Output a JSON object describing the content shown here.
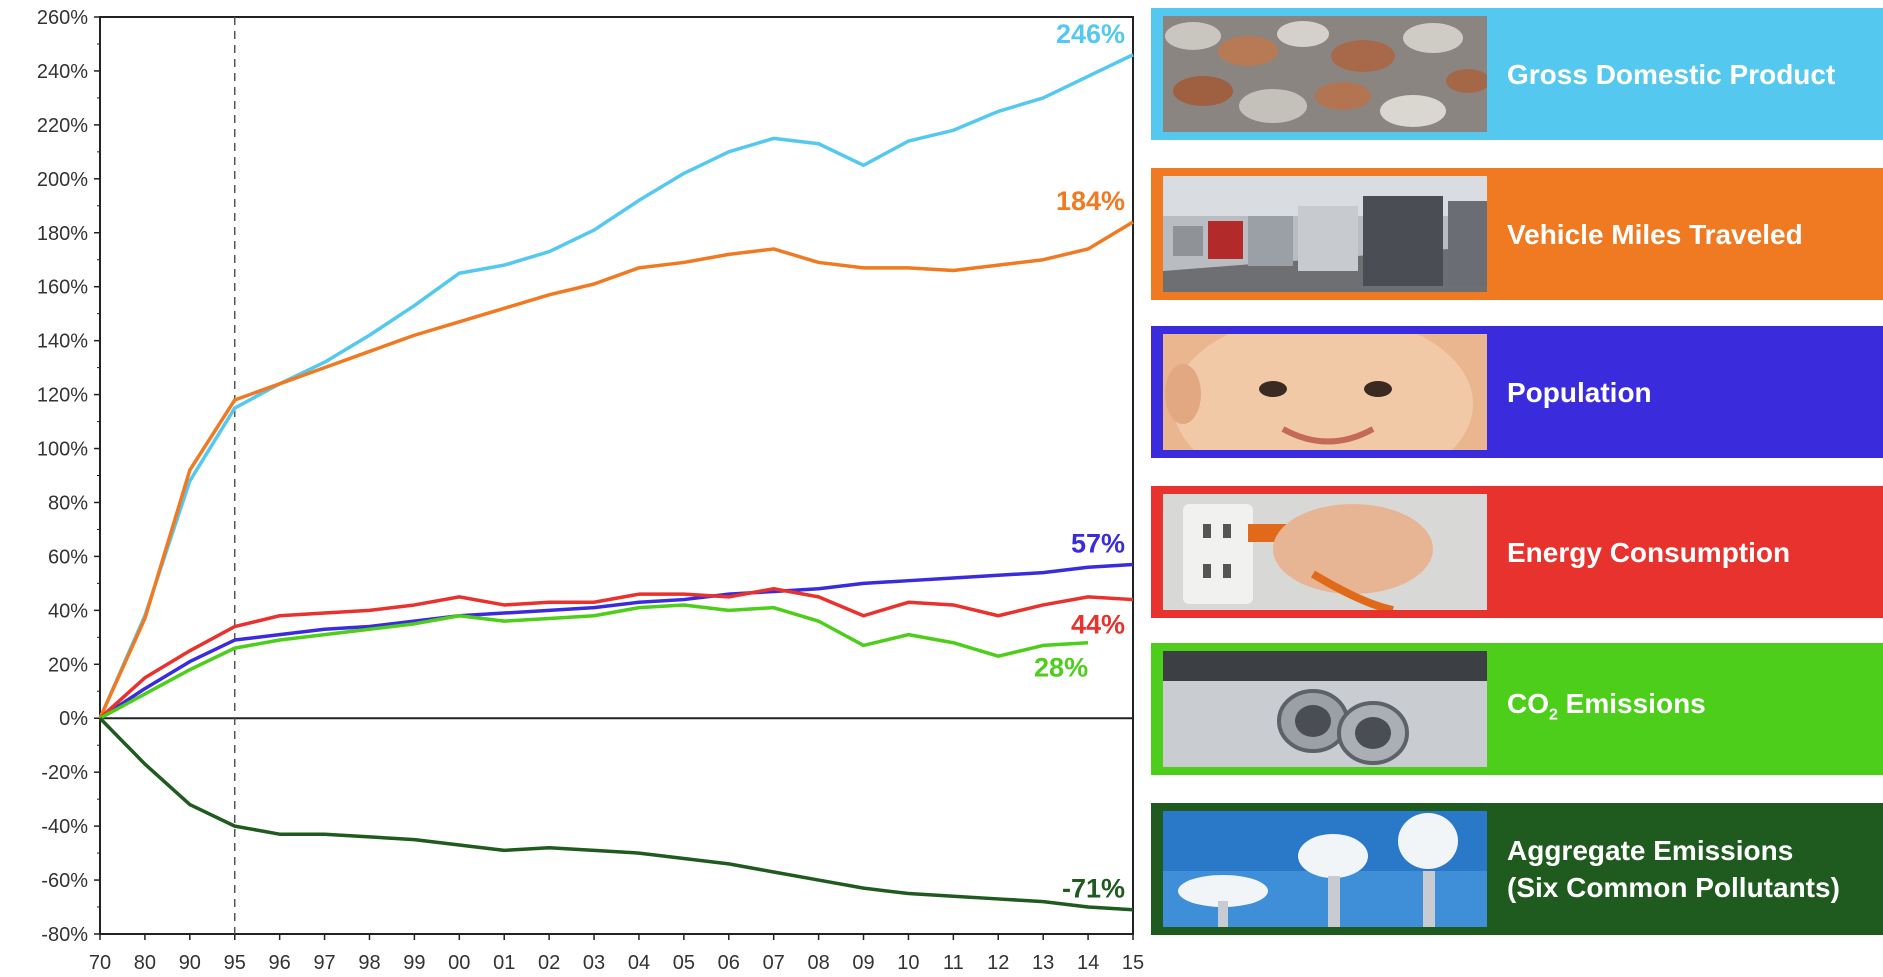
{
  "chart_data": {
    "type": "line",
    "x": [
      "70",
      "80",
      "90",
      "95",
      "96",
      "97",
      "98",
      "99",
      "00",
      "01",
      "02",
      "03",
      "04",
      "05",
      "06",
      "07",
      "08",
      "09",
      "10",
      "11",
      "12",
      "13",
      "14",
      "15"
    ],
    "ylim": [
      -80,
      260
    ],
    "yticks": [
      "260%",
      "240%",
      "220%",
      "200%",
      "180%",
      "160%",
      "140%",
      "120%",
      "100%",
      "80%",
      "60%",
      "40%",
      "20%",
      "0%",
      "-20%",
      "-40%",
      "-60%",
      "-80%"
    ],
    "grid": false,
    "reference_line_x": "95",
    "series": [
      {
        "name": "Gross Domestic Product",
        "color": "#55c8f0",
        "end_label": "246%",
        "values": [
          0,
          38,
          88,
          115,
          124,
          132,
          142,
          153,
          165,
          168,
          173,
          181,
          192,
          202,
          210,
          215,
          213,
          205,
          214,
          218,
          225,
          230,
          238,
          246
        ]
      },
      {
        "name": "Vehicle Miles Traveled",
        "color": "#f07a22",
        "end_label": "184%",
        "values": [
          0,
          37,
          92,
          118,
          124,
          130,
          136,
          142,
          147,
          152,
          157,
          161,
          167,
          169,
          172,
          174,
          169,
          167,
          167,
          166,
          168,
          170,
          174,
          184
        ]
      },
      {
        "name": "Population",
        "color": "#3a2cdc",
        "end_label": "57%",
        "values": [
          0,
          11,
          21,
          29,
          31,
          33,
          34,
          36,
          38,
          39,
          40,
          41,
          43,
          44,
          46,
          47,
          48,
          50,
          51,
          52,
          53,
          54,
          56,
          57
        ]
      },
      {
        "name": "Energy Consumption",
        "color": "#e8322e",
        "end_label": "44%",
        "values": [
          0,
          15,
          25,
          34,
          38,
          39,
          40,
          42,
          45,
          42,
          43,
          43,
          46,
          46,
          45,
          48,
          45,
          38,
          43,
          42,
          38,
          42,
          45,
          44
        ]
      },
      {
        "name": "CO2 Emissions",
        "color": "#4cce1a",
        "end_label": "28%",
        "values": [
          0,
          9,
          18,
          26,
          29,
          31,
          33,
          35,
          38,
          36,
          37,
          38,
          41,
          42,
          40,
          41,
          36,
          27,
          31,
          28,
          23,
          27,
          28,
          null
        ]
      },
      {
        "name": "Aggregate Emissions (Six Common Pollutants)",
        "color": "#1f5a1f",
        "end_label": "-71%",
        "values": [
          0,
          -17,
          -32,
          -40,
          -43,
          -43,
          -44,
          -45,
          -47,
          -49,
          -48,
          -49,
          -50,
          -52,
          -54,
          -57,
          -60,
          -63,
          -65,
          -66,
          -67,
          -68,
          -70,
          -71
        ]
      }
    ]
  },
  "legend": [
    {
      "label": "Gross Domestic Product",
      "color": "#55c8f0",
      "photo": "coins-photo"
    },
    {
      "label": "Vehicle Miles Traveled",
      "color": "#f07a22",
      "photo": "traffic-photo"
    },
    {
      "label": "Population",
      "color": "#3a2cdc",
      "photo": "baby-photo"
    },
    {
      "label": "Energy Consumption",
      "color": "#e8322e",
      "photo": "power-plug-photo"
    },
    {
      "label_main": "CO",
      "label_sub": "2",
      "label_rest": " Emissions",
      "color": "#4cce1a",
      "photo": "exhaust-pipe-photo"
    },
    {
      "label_line1": "Aggregate Emissions",
      "label_line2": "(Six Common Pollutants)",
      "color": "#1f5a1f",
      "photo": "smokestacks-photo"
    }
  ]
}
